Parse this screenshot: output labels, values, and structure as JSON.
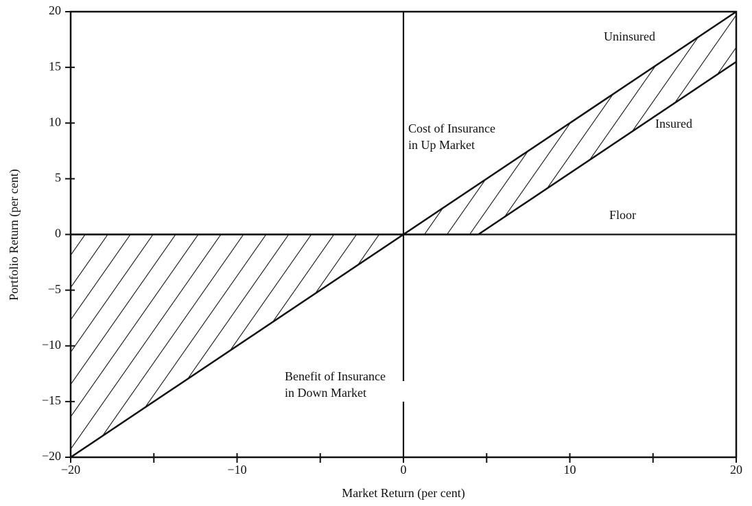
{
  "chart_data": {
    "type": "line",
    "x_label": "Market Return (per cent)",
    "y_label": "Portfolio Return (per cent)",
    "series": [
      {
        "name": "Uninsured",
        "color": "#111111",
        "x": [
          -20,
          20
        ],
        "values": [
          -20,
          20
        ]
      },
      {
        "name": "Insured",
        "color": "#111111",
        "x": [
          -20,
          4.5,
          20
        ],
        "values": [
          0,
          0,
          15.5
        ]
      }
    ],
    "floor": 0,
    "annotations": [
      "Uninsured",
      "Insured",
      "Floor",
      "Cost of Insurance",
      "in Up Market",
      "Benefit of Insurance",
      "in Down Market"
    ],
    "xlim": [
      -20,
      20
    ],
    "ylim": [
      -20,
      20
    ],
    "xticks": [
      {
        "value": -20,
        "label": "−20"
      },
      {
        "value": -10,
        "label": "−10"
      },
      0,
      10,
      20
    ],
    "xminor": [
      -15,
      -5,
      5,
      15
    ],
    "yticks": [
      {
        "value": -20,
        "label": "−20"
      },
      {
        "value": -15,
        "label": "−15"
      },
      {
        "value": -10,
        "label": "−10"
      },
      {
        "value": -5,
        "label": "−5"
      },
      0,
      5,
      10,
      15,
      20
    ]
  }
}
